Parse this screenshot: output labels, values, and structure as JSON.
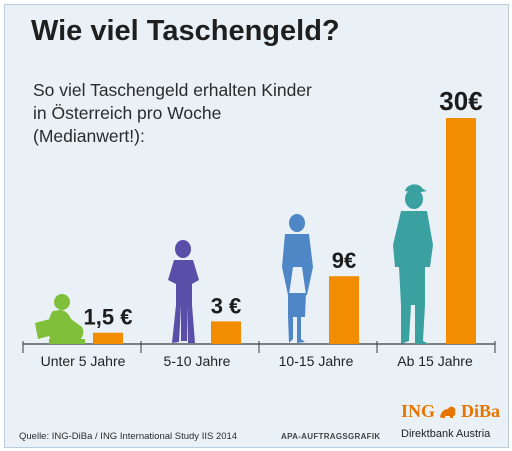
{
  "title": "Wie viel Taschengeld?",
  "subtitle": [
    "So viel Taschengeld erhalten Kinder",
    "in Österreich pro Woche",
    "(Medianwert!):"
  ],
  "chart_data": {
    "type": "bar",
    "categories": [
      "Unter 5 Jahre",
      "5-10 Jahre",
      "10-15 Jahre",
      "Ab 15 Jahre"
    ],
    "values": [
      1.5,
      3,
      9,
      30
    ],
    "value_labels": [
      "1,5 €",
      "3 €",
      "9€",
      "30€"
    ],
    "bar_color": "#f28c00",
    "figure_colors": [
      "#7fbf3a",
      "#5a4ea8",
      "#4f86c6",
      "#3aa0a0"
    ],
    "unit": "€"
  },
  "footer": {
    "source": "Quelle: ING-DiBa / ING International Study IIS 2014",
    "credit": "APA-AUFTRAGSGRAFIK"
  },
  "brand": {
    "name": "ING",
    "name_suffix": "DiBa",
    "tagline": "Direktbank Austria",
    "color": "#e87400"
  }
}
